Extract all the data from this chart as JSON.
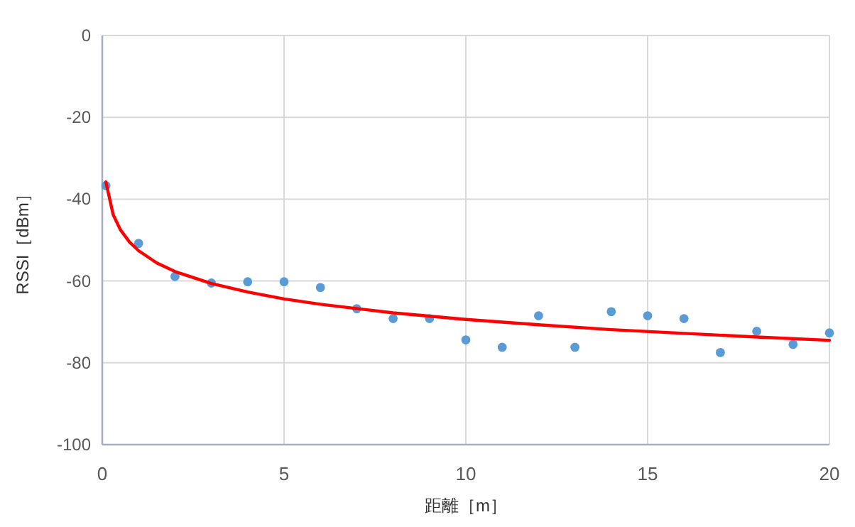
{
  "chart_data": {
    "type": "scatter",
    "xlabel": "距離［m］",
    "ylabel": "RSSI［dBm］",
    "xlim": [
      0,
      20
    ],
    "ylim": [
      -100,
      0
    ],
    "xticks": [
      0,
      5,
      10,
      15,
      20
    ],
    "yticks": [
      -100,
      -80,
      -60,
      -40,
      -20,
      0
    ],
    "grid": true,
    "series": [
      {
        "marker": "circle",
        "color": "#5b9bd5",
        "x": [
          0.1,
          1,
          2,
          3,
          4,
          5,
          6,
          7,
          8,
          9,
          10,
          11,
          12,
          13,
          14,
          15,
          16,
          17,
          18,
          19,
          20
        ],
        "values": [
          -36.7,
          -50.8,
          -58.9,
          -60.5,
          -60.2,
          -60.2,
          -61.6,
          -66.8,
          -69.2,
          -69.2,
          -74.4,
          -76.2,
          -68.5,
          -76.2,
          -67.5,
          -68.5,
          -69.2,
          -77.5,
          -72.3,
          -75.5,
          -72.7
        ]
      },
      {
        "type": "line",
        "marker": "none",
        "line_style": "solid",
        "color": "#ff0000",
        "x": [
          0.1,
          0.3,
          0.5,
          0.75,
          1,
          1.5,
          2,
          3,
          4,
          5,
          6,
          8,
          10,
          12,
          14,
          16,
          18,
          20
        ],
        "values": [
          -35.8,
          -43.8,
          -47.5,
          -50.5,
          -52.6,
          -55.6,
          -57.7,
          -60.6,
          -62.7,
          -64.4,
          -65.7,
          -67.8,
          -69.4,
          -70.7,
          -71.9,
          -72.8,
          -73.7,
          -74.5
        ]
      }
    ]
  }
}
